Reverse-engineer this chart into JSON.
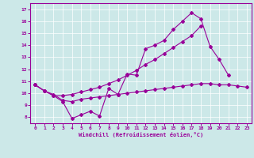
{
  "xlabel": "Windchill (Refroidissement éolien,°C)",
  "bg_color": "#cce8e8",
  "line_color": "#990099",
  "xlim": [
    -0.5,
    23.5
  ],
  "ylim": [
    7.5,
    17.5
  ],
  "xticks": [
    0,
    1,
    2,
    3,
    4,
    5,
    6,
    7,
    8,
    9,
    10,
    11,
    12,
    13,
    14,
    15,
    16,
    17,
    18,
    19,
    20,
    21,
    22,
    23
  ],
  "yticks": [
    8,
    9,
    10,
    11,
    12,
    13,
    14,
    15,
    16,
    17
  ],
  "line1_x": [
    0,
    1,
    2,
    3,
    4,
    5,
    6,
    7,
    8,
    9,
    10,
    11,
    12,
    13,
    14,
    15,
    16,
    17,
    18,
    19,
    20,
    21
  ],
  "line1_y": [
    10.7,
    10.2,
    9.8,
    9.3,
    7.9,
    8.2,
    8.5,
    8.1,
    10.4,
    9.9,
    11.6,
    11.5,
    13.7,
    14.0,
    14.4,
    15.3,
    16.0,
    16.7,
    16.2,
    13.9,
    12.8,
    11.5
  ],
  "line2_x": [
    0,
    1,
    2,
    3,
    4,
    5,
    6,
    7,
    8,
    9,
    10,
    11,
    12,
    13,
    14,
    15,
    16,
    17,
    18
  ],
  "line2_y": [
    10.7,
    10.2,
    9.8,
    9.8,
    9.9,
    10.1,
    10.3,
    10.5,
    10.8,
    11.1,
    11.5,
    11.9,
    12.4,
    12.8,
    13.3,
    13.8,
    14.3,
    14.8,
    15.6
  ],
  "line3_x": [
    0,
    1,
    2,
    3,
    4,
    5,
    6,
    7,
    8,
    9,
    10,
    11,
    12,
    13,
    14,
    15,
    16,
    17,
    18,
    19,
    20,
    21,
    22,
    23
  ],
  "line3_y": [
    10.7,
    10.2,
    9.9,
    9.4,
    9.3,
    9.5,
    9.6,
    9.7,
    9.8,
    9.9,
    10.0,
    10.1,
    10.2,
    10.3,
    10.4,
    10.5,
    10.6,
    10.7,
    10.8,
    10.8,
    10.7,
    10.7,
    10.6,
    10.5
  ]
}
